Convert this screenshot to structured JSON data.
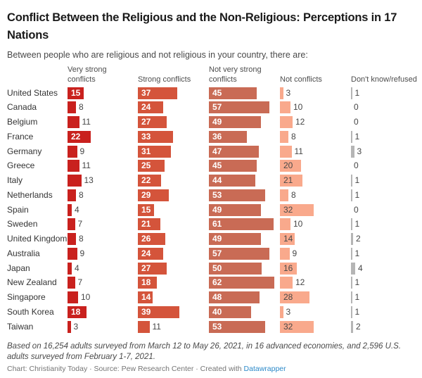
{
  "title": "Conflict Between the Religious and the Non-Religious: Perceptions in 17 Nations",
  "subtitle": "Between people who are religious and not religious in your country, there are:",
  "chart_data": {
    "type": "bar",
    "variant": "split-bars-small-multiple-columns",
    "title": "Conflict Between the Religious and the Non-Religious: Perceptions in 17 Nations",
    "subtitle": "Between people who are religious and not religious in your country, there are:",
    "categories": [
      "United States",
      "Canada",
      "Belgium",
      "France",
      "Germany",
      "Greece",
      "Italy",
      "Netherlands",
      "Spain",
      "Sweden",
      "United Kingdom",
      "Australia",
      "Japan",
      "New Zealand",
      "Singapore",
      "South Korea",
      "Taiwan"
    ],
    "series": [
      {
        "name": "Very strong conflicts",
        "color": "#c9211e",
        "values": [
          15,
          8,
          11,
          22,
          9,
          11,
          13,
          8,
          4,
          7,
          8,
          9,
          4,
          7,
          10,
          18,
          3
        ]
      },
      {
        "name": "Strong conflicts",
        "color": "#d4543b",
        "values": [
          37,
          24,
          27,
          33,
          31,
          25,
          22,
          29,
          15,
          21,
          26,
          24,
          27,
          18,
          14,
          39,
          11
        ]
      },
      {
        "name": "Not very strong conflicts",
        "color": "#c96b55",
        "values": [
          45,
          57,
          49,
          36,
          47,
          45,
          44,
          53,
          49,
          61,
          49,
          57,
          50,
          62,
          48,
          40,
          53
        ]
      },
      {
        "name": "Not conflicts",
        "color": "#f9a98c",
        "values": [
          3,
          10,
          12,
          8,
          11,
          20,
          21,
          8,
          32,
          10,
          14,
          9,
          16,
          12,
          28,
          3,
          32
        ]
      },
      {
        "name": "Don't know/refused",
        "color": "#b5b5b5",
        "values": [
          1,
          0,
          0,
          1,
          3,
          0,
          1,
          1,
          0,
          1,
          2,
          1,
          4,
          1,
          1,
          1,
          2
        ]
      }
    ],
    "legend_position": "column-headers-above-bars",
    "grid": false,
    "value_labels": "shown (inside bar when wide enough, otherwise right of bar)"
  },
  "footer": {
    "note": "Based on 16,254 adults surveyed from March 12 to May 26, 2021, in 16 advanced economies, and 2,596 U.S. adults surveyed from February 1-7, 2021.",
    "attribution_prefix": "Chart: Christianity Today · Source: Pew Research Center · Created with ",
    "attribution_link": "Datawrapper"
  },
  "colors": {
    "title_text": "#1a1a1a",
    "body_text": "#494949",
    "link_blue": "#2d8ac9"
  }
}
